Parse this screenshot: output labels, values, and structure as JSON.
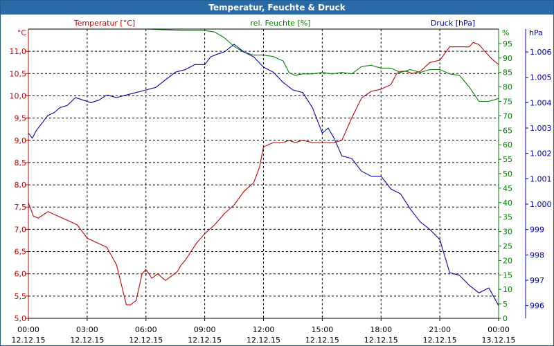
{
  "title": "Temperatur, Feuchte & Druck",
  "colors": {
    "temperature": "#c00000",
    "humidity": "#008000",
    "pressure": "#0000b0",
    "title_bar": "#2a6aa6",
    "grid": "#000000"
  },
  "chart_data": {
    "type": "line",
    "title": "Temperatur, Feuchte & Druck",
    "grid": true,
    "x_ticks": [
      {
        "time": "00:00",
        "date": "12.12.15"
      },
      {
        "time": "03:00",
        "date": "12.12.15"
      },
      {
        "time": "06:00",
        "date": "12.12.15"
      },
      {
        "time": "09:00",
        "date": "12.12.15"
      },
      {
        "time": "12:00",
        "date": "12.12.15"
      },
      {
        "time": "15:00",
        "date": "12.12.15"
      },
      {
        "time": "18:00",
        "date": "12.12.15"
      },
      {
        "time": "21:00",
        "date": "12.12.15"
      },
      {
        "time": "00:00",
        "date": "13.12.15"
      }
    ],
    "axes": {
      "temperature": {
        "label": "Temperatur [°C]",
        "unit": "°C",
        "ylim": [
          5.0,
          11.5
        ],
        "ticks": [
          "5,0",
          "5,5",
          "6,0",
          "6,5",
          "7,0",
          "7,5",
          "8,0",
          "8,5",
          "9,0",
          "9,5",
          "10,0",
          "10,5",
          "11,0"
        ]
      },
      "humidity": {
        "label": "rel. Feuchte [%]",
        "unit": "%",
        "ylim": [
          0,
          100
        ],
        "ticks": [
          "0",
          "5",
          "10",
          "15",
          "20",
          "25",
          "30",
          "35",
          "40",
          "45",
          "50",
          "55",
          "60",
          "65",
          "70",
          "75",
          "80",
          "85",
          "90",
          "95"
        ]
      },
      "pressure": {
        "label": "Druck [hPa]",
        "unit": "hPa",
        "ylim": [
          995.5,
          1006.9
        ],
        "ticks": [
          "996",
          "997",
          "998",
          "999",
          "1.000",
          "1.001",
          "1.002",
          "1.003",
          "1.004",
          "1.005",
          "1.006"
        ]
      }
    },
    "series": [
      {
        "name": "Temperatur [°C]",
        "axis": "temperature",
        "x": [
          0,
          0.25,
          0.5,
          1.0,
          1.5,
          2.0,
          2.5,
          3.0,
          3.5,
          4.0,
          4.5,
          5.0,
          5.2,
          5.5,
          5.8,
          6.0,
          6.3,
          6.6,
          7.0,
          7.3,
          7.6,
          7.8,
          8.0,
          8.3,
          8.6,
          9.0,
          9.5,
          10.0,
          10.5,
          11.0,
          11.5,
          11.8,
          12.0,
          12.5,
          13.0,
          13.3,
          13.6,
          14.0,
          14.5,
          15.0,
          15.3,
          15.6,
          16.0,
          16.5,
          17.0,
          17.5,
          18.0,
          18.5,
          18.8,
          19.0,
          19.3,
          19.6,
          20.0,
          20.5,
          21.0,
          21.5,
          22.0,
          22.5,
          22.7,
          23.0,
          23.3,
          23.6,
          24.0
        ],
        "y": [
          7.6,
          7.3,
          7.25,
          7.4,
          7.3,
          7.2,
          7.1,
          6.8,
          6.7,
          6.6,
          6.2,
          5.3,
          5.3,
          5.4,
          6.0,
          6.1,
          5.9,
          6.0,
          5.85,
          5.95,
          6.05,
          6.2,
          6.3,
          6.5,
          6.7,
          6.9,
          7.1,
          7.35,
          7.55,
          7.85,
          8.05,
          8.4,
          8.85,
          8.95,
          8.95,
          9.0,
          8.95,
          9.0,
          8.95,
          8.95,
          8.95,
          8.95,
          9.0,
          9.5,
          9.95,
          10.1,
          10.15,
          10.25,
          10.5,
          10.55,
          10.55,
          10.5,
          10.55,
          10.75,
          10.8,
          11.1,
          11.1,
          11.1,
          11.2,
          11.15,
          11.0,
          10.85,
          10.7
        ]
      },
      {
        "name": "rel. Feuchte [%]",
        "axis": "humidity",
        "x": [
          0,
          2,
          4,
          6,
          8,
          9,
          9.5,
          10,
          10.5,
          11,
          11.5,
          12,
          12.5,
          13,
          13.3,
          13.6,
          14,
          14.5,
          15,
          15.5,
          16,
          16.5,
          17,
          17.5,
          18,
          18.5,
          19,
          19.5,
          20,
          20.5,
          21,
          21.5,
          22,
          22.5,
          23,
          23.5,
          24
        ],
        "y": [
          100,
          100,
          100,
          100,
          99.5,
          99.5,
          99,
          97,
          94,
          92,
          91,
          91,
          90.5,
          89,
          85,
          84,
          84.5,
          84.5,
          85,
          84.5,
          85,
          84.5,
          87,
          87.5,
          86.5,
          86.5,
          85,
          86,
          85,
          86,
          86,
          84.5,
          84,
          80,
          75,
          75,
          76
        ]
      },
      {
        "name": "Druck [hPa]",
        "axis": "pressure",
        "x": [
          0,
          0.2,
          0.4,
          0.7,
          1.0,
          1.3,
          1.6,
          2.0,
          2.4,
          2.8,
          3.2,
          3.6,
          4.0,
          4.5,
          5.0,
          5.5,
          6.0,
          6.5,
          7.0,
          7.5,
          8.0,
          8.5,
          9.0,
          9.3,
          9.6,
          10.0,
          10.5,
          11.0,
          11.5,
          12.0,
          12.5,
          13.0,
          13.5,
          14.0,
          14.5,
          15.0,
          15.3,
          15.6,
          16.0,
          16.5,
          17.0,
          17.5,
          18.0,
          18.5,
          19.0,
          19.5,
          20.0,
          20.5,
          21.0,
          21.5,
          22.0,
          22.5,
          23.0,
          23.5,
          24.0
        ],
        "y": [
          1002.8,
          1002.6,
          1002.9,
          1003.2,
          1003.5,
          1003.6,
          1003.8,
          1003.9,
          1004.2,
          1004.1,
          1004.0,
          1004.1,
          1004.3,
          1004.2,
          1004.3,
          1004.4,
          1004.5,
          1004.6,
          1004.9,
          1005.2,
          1005.3,
          1005.5,
          1005.5,
          1005.8,
          1005.9,
          1006.0,
          1006.3,
          1006.0,
          1005.8,
          1005.4,
          1005.2,
          1004.8,
          1004.5,
          1004.4,
          1003.8,
          1002.8,
          1003.0,
          1002.6,
          1001.9,
          1001.8,
          1001.3,
          1001.1,
          1001.1,
          1000.6,
          1000.4,
          999.8,
          999.3,
          999.0,
          998.6,
          997.3,
          997.2,
          996.8,
          996.5,
          996.7,
          996.0
        ]
      }
    ]
  }
}
